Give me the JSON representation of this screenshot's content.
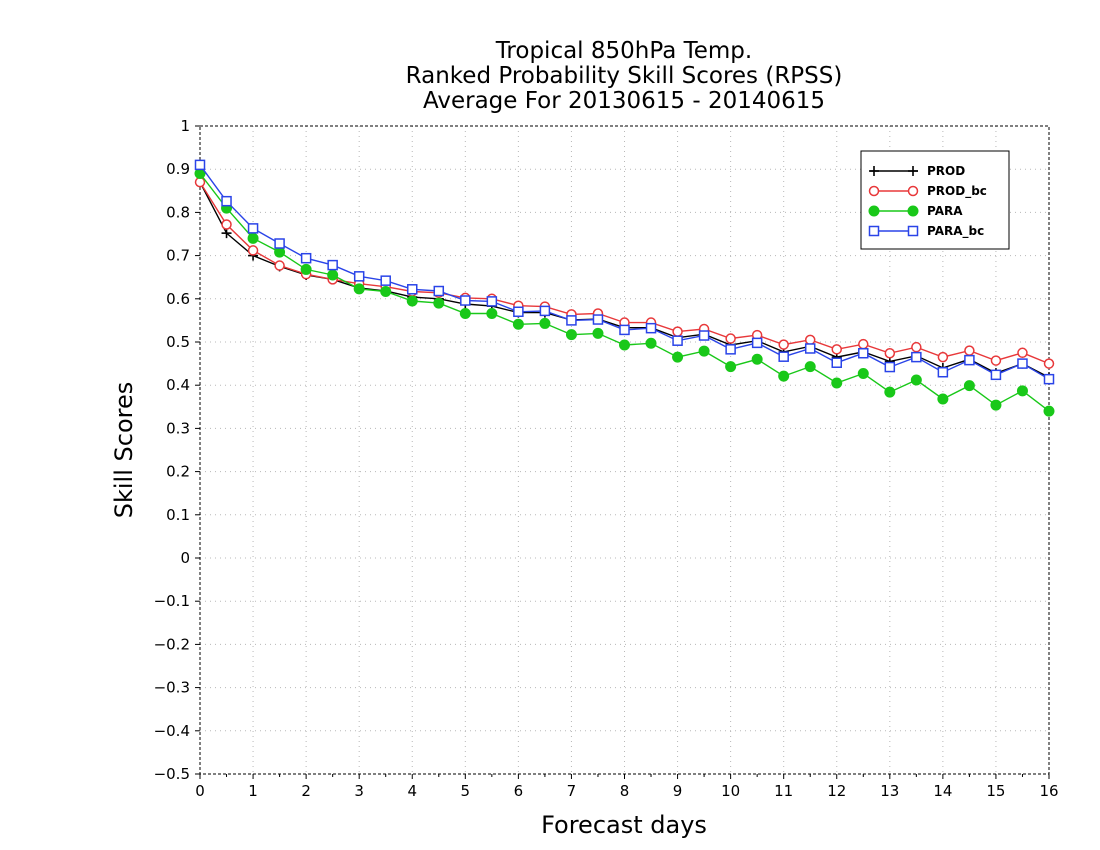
{
  "chart_data": {
    "type": "line",
    "title": [
      "Tropical 850hPa Temp.",
      "Ranked Probability Skill Scores (RPSS)",
      "Average For 20130615 - 20140615"
    ],
    "xlabel": "Forecast days",
    "ylabel": "Skill Scores",
    "xlim": [
      0,
      16
    ],
    "ylim": [
      -0.5,
      1
    ],
    "xticks": [
      0,
      1,
      2,
      3,
      4,
      5,
      6,
      7,
      8,
      9,
      10,
      11,
      12,
      13,
      14,
      15,
      16
    ],
    "yticks": [
      -0.5,
      -0.4,
      -0.3,
      -0.2,
      -0.1,
      0,
      0.1,
      0.2,
      0.3,
      0.4,
      0.5,
      0.6,
      0.7,
      0.8,
      0.9,
      1
    ],
    "ytick_labels": [
      "−0.5",
      "−0.4",
      "−0.3",
      "−0.2",
      "−0.1",
      "0",
      "0.1",
      "0.2",
      "0.3",
      "0.4",
      "0.5",
      "0.6",
      "0.7",
      "0.8",
      "0.9",
      "1"
    ],
    "grid": true,
    "legend_position": "top-right",
    "x": [
      0,
      0.5,
      1,
      1.5,
      2,
      2.5,
      3,
      3.5,
      4,
      4.5,
      5,
      5.5,
      6,
      6.5,
      7,
      7.5,
      8,
      8.5,
      9,
      9.5,
      10,
      10.5,
      11,
      11.5,
      12,
      12.5,
      13,
      13.5,
      14,
      14.5,
      15,
      15.5,
      16
    ],
    "series": [
      {
        "name": "PROD",
        "color": "#000000",
        "marker": "plus",
        "values": [
          0.87,
          0.752,
          0.7,
          0.675,
          0.655,
          0.645,
          0.625,
          0.618,
          0.604,
          0.6,
          0.588,
          0.583,
          0.568,
          0.568,
          0.551,
          0.553,
          0.533,
          0.533,
          0.51,
          0.518,
          0.493,
          0.503,
          0.477,
          0.49,
          0.465,
          0.477,
          0.455,
          0.468,
          0.44,
          0.46,
          0.428,
          0.45,
          0.418
        ]
      },
      {
        "name": "PROD_bc",
        "color": "#e8383a",
        "marker": "open-circle",
        "values": [
          0.87,
          0.772,
          0.712,
          0.677,
          0.657,
          0.645,
          0.635,
          0.628,
          0.617,
          0.614,
          0.602,
          0.6,
          0.584,
          0.582,
          0.564,
          0.566,
          0.545,
          0.545,
          0.524,
          0.53,
          0.508,
          0.516,
          0.494,
          0.505,
          0.483,
          0.495,
          0.474,
          0.488,
          0.465,
          0.48,
          0.457,
          0.475,
          0.45
        ]
      },
      {
        "name": "PARA",
        "color": "#19c819",
        "marker": "filled-circle",
        "values": [
          0.89,
          0.81,
          0.74,
          0.708,
          0.668,
          0.655,
          0.623,
          0.617,
          0.595,
          0.59,
          0.566,
          0.566,
          0.541,
          0.543,
          0.517,
          0.52,
          0.493,
          0.497,
          0.465,
          0.479,
          0.443,
          0.46,
          0.421,
          0.443,
          0.405,
          0.427,
          0.384,
          0.412,
          0.368,
          0.399,
          0.354,
          0.387,
          0.34
        ]
      },
      {
        "name": "PARA_bc",
        "color": "#2a44e8",
        "marker": "open-square",
        "values": [
          0.91,
          0.826,
          0.763,
          0.728,
          0.694,
          0.678,
          0.652,
          0.642,
          0.622,
          0.618,
          0.596,
          0.594,
          0.57,
          0.572,
          0.55,
          0.552,
          0.528,
          0.532,
          0.503,
          0.515,
          0.483,
          0.498,
          0.466,
          0.485,
          0.452,
          0.474,
          0.442,
          0.465,
          0.43,
          0.458,
          0.424,
          0.45,
          0.414
        ]
      }
    ]
  }
}
